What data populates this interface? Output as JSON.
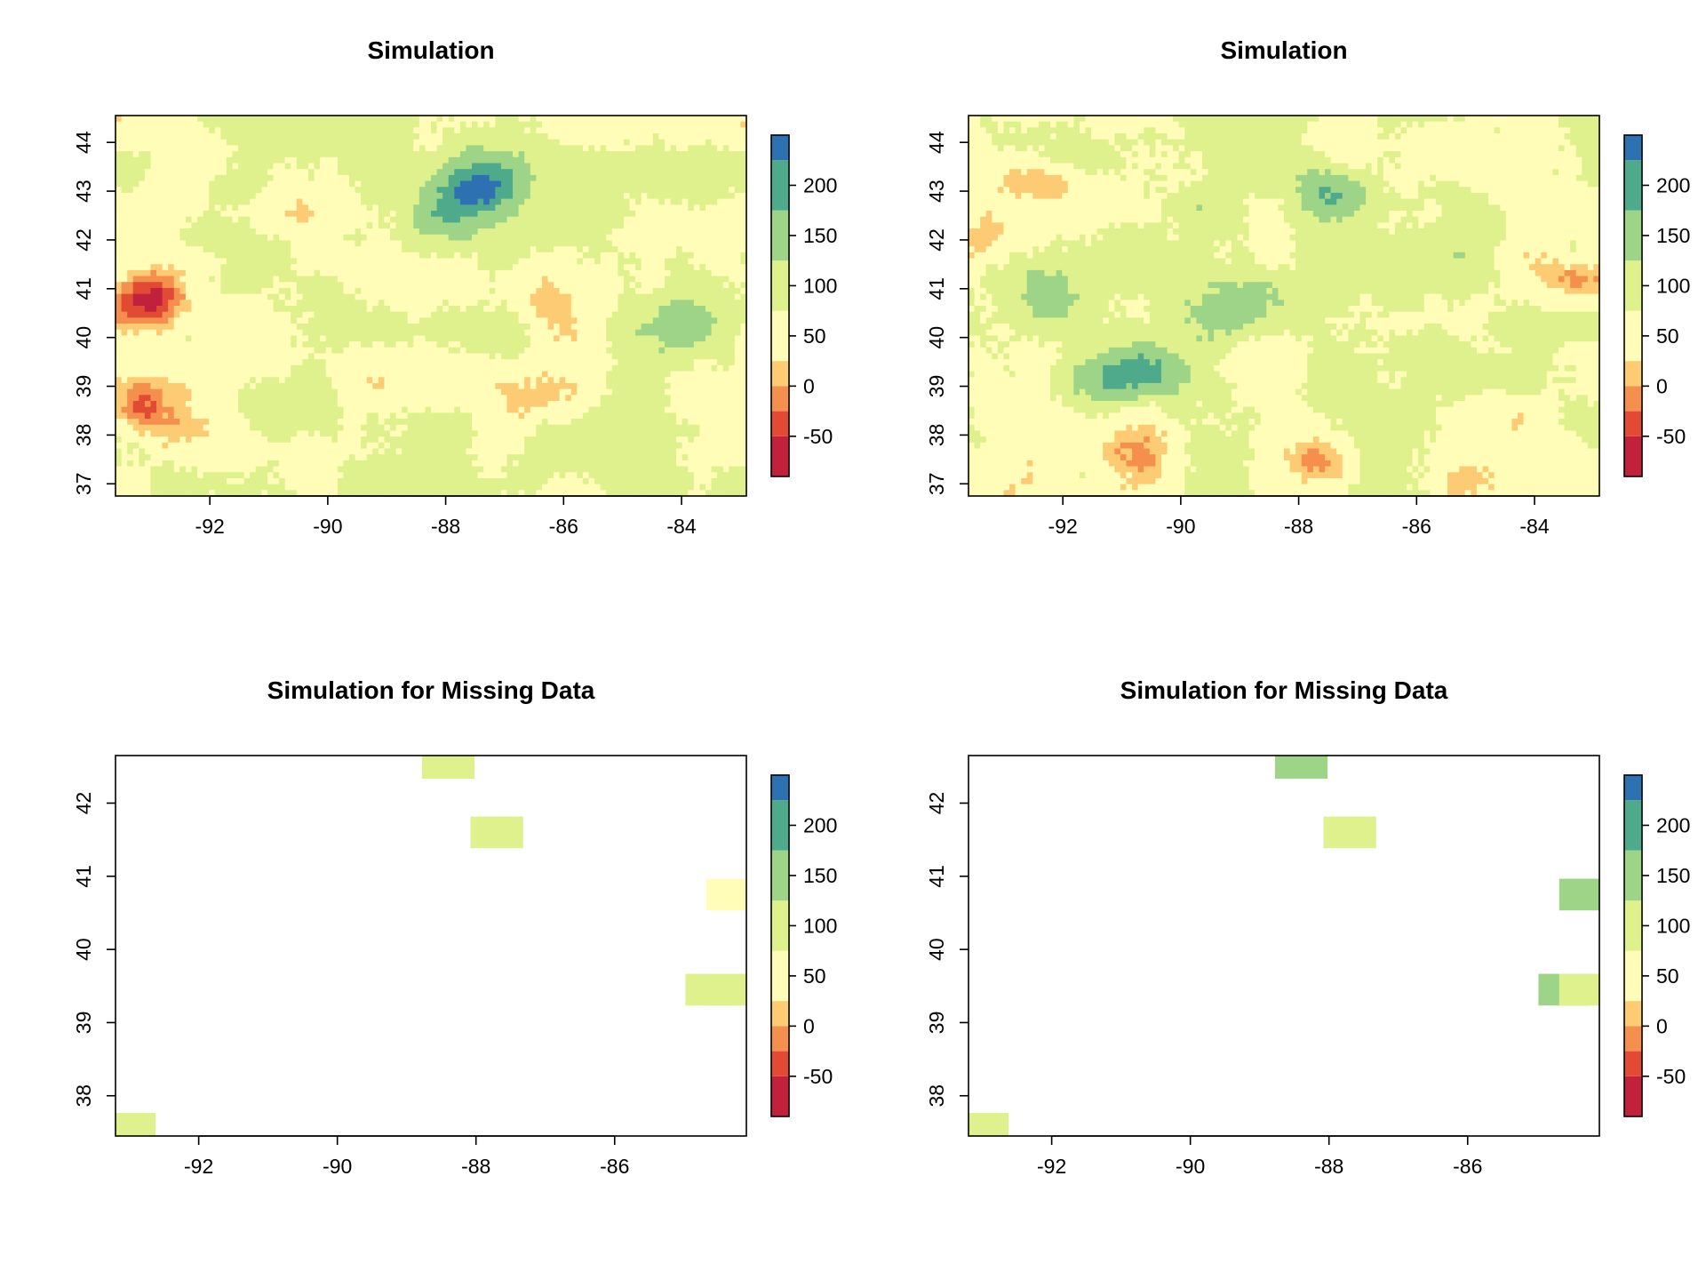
{
  "chart_data": [
    {
      "type": "heatmap",
      "title": "Simulation",
      "xlim": [
        -93.6,
        -82.9
      ],
      "ylim": [
        36.75,
        44.55
      ],
      "x_ticks": [
        -92,
        -90,
        -88,
        -86,
        -84
      ],
      "y_ticks": [
        37,
        38,
        39,
        40,
        41,
        42,
        43,
        44
      ],
      "hotspots": [
        {
          "x": -93.1,
          "y": 40.8,
          "value": -60
        },
        {
          "x": -93.3,
          "y": 38.6,
          "value": -25
        },
        {
          "x": -92.4,
          "y": 38.0,
          "value": -5
        },
        {
          "x": -90.5,
          "y": 42.6,
          "value": 5
        },
        {
          "x": -87.5,
          "y": 43.1,
          "value": 205
        },
        {
          "x": -87.8,
          "y": 42.5,
          "value": 130
        },
        {
          "x": -86.5,
          "y": 40.9,
          "value": 15
        },
        {
          "x": -84.0,
          "y": 40.3,
          "value": 140
        },
        {
          "x": -89.4,
          "y": 40.4,
          "value": 120
        },
        {
          "x": -90.5,
          "y": 38.4,
          "value": 125
        },
        {
          "x": -86.2,
          "y": 38.8,
          "value": 40
        },
        {
          "x": -84.0,
          "y": 42.3,
          "value": 30
        }
      ],
      "colorbar": {
        "ticks": [
          -50,
          0,
          50,
          100,
          150,
          200
        ]
      }
    },
    {
      "type": "heatmap",
      "title": "Simulation",
      "xlim": [
        -93.6,
        -82.9
      ],
      "ylim": [
        36.75,
        44.55
      ],
      "x_ticks": [
        -92,
        -90,
        -88,
        -86,
        -84
      ],
      "y_ticks": [
        37,
        38,
        39,
        40,
        41,
        42,
        43,
        44
      ],
      "hotspots": [
        {
          "x": -87.5,
          "y": 43.0,
          "value": 170
        },
        {
          "x": -90.6,
          "y": 39.3,
          "value": 165
        },
        {
          "x": -91.4,
          "y": 39.1,
          "value": 140
        },
        {
          "x": -88.6,
          "y": 40.8,
          "value": 150
        },
        {
          "x": -92.2,
          "y": 40.7,
          "value": 140
        },
        {
          "x": -93.3,
          "y": 42.0,
          "value": 0
        },
        {
          "x": -92.5,
          "y": 43.2,
          "value": 0
        },
        {
          "x": -87.7,
          "y": 37.4,
          "value": -30
        },
        {
          "x": -90.8,
          "y": 37.5,
          "value": 10
        },
        {
          "x": -83.1,
          "y": 41.1,
          "value": -20
        },
        {
          "x": -89.5,
          "y": 40.5,
          "value": 110
        },
        {
          "x": -86.0,
          "y": 39.6,
          "value": 120
        },
        {
          "x": -85.2,
          "y": 37.1,
          "value": 5
        }
      ],
      "colorbar": {
        "ticks": [
          -50,
          0,
          50,
          100,
          150,
          200
        ]
      }
    },
    {
      "type": "heatmap",
      "title": "Simulation for Missing Data",
      "xlim": [
        -93.2,
        -84.1
      ],
      "ylim": [
        37.45,
        42.65
      ],
      "x_ticks": [
        -92,
        -90,
        -88,
        -86
      ],
      "y_ticks": [
        38,
        39,
        40,
        41,
        42
      ],
      "cells": [
        {
          "x": -88.4,
          "y": 42.55,
          "value": 75
        },
        {
          "x": -87.7,
          "y": 41.6,
          "value": 75
        },
        {
          "x": -84.3,
          "y": 40.75,
          "value": 25
        },
        {
          "x": -84.6,
          "y": 39.45,
          "value": 75
        },
        {
          "x": -84.3,
          "y": 39.45,
          "value": 75
        },
        {
          "x": -93.0,
          "y": 37.55,
          "value": 75
        }
      ],
      "colorbar": {
        "ticks": [
          -50,
          0,
          50,
          100,
          150,
          200
        ]
      }
    },
    {
      "type": "heatmap",
      "title": "Simulation for Missing Data",
      "xlim": [
        -93.2,
        -84.1
      ],
      "ylim": [
        37.45,
        42.65
      ],
      "x_ticks": [
        -92,
        -90,
        -88,
        -86
      ],
      "y_ticks": [
        38,
        39,
        40,
        41,
        42
      ],
      "cells": [
        {
          "x": -88.4,
          "y": 42.55,
          "value": 125
        },
        {
          "x": -87.7,
          "y": 41.6,
          "value": 75
        },
        {
          "x": -84.3,
          "y": 40.75,
          "value": 125
        },
        {
          "x": -84.6,
          "y": 39.45,
          "value": 125
        },
        {
          "x": -84.3,
          "y": 39.45,
          "value": 75
        },
        {
          "x": -93.0,
          "y": 37.55,
          "value": 75
        }
      ],
      "colorbar": {
        "ticks": [
          -50,
          0,
          50,
          100,
          150,
          200
        ]
      }
    }
  ],
  "palette": {
    "breaks": [
      -90,
      -50,
      -25,
      0,
      25,
      75,
      125,
      175,
      225,
      250
    ],
    "colors": [
      "#C1213A",
      "#E14A33",
      "#F58F4E",
      "#FDCB74",
      "#FFFDB7",
      "#DEF18C",
      "#9DD488",
      "#4FAA8B",
      "#2E71B3"
    ]
  }
}
